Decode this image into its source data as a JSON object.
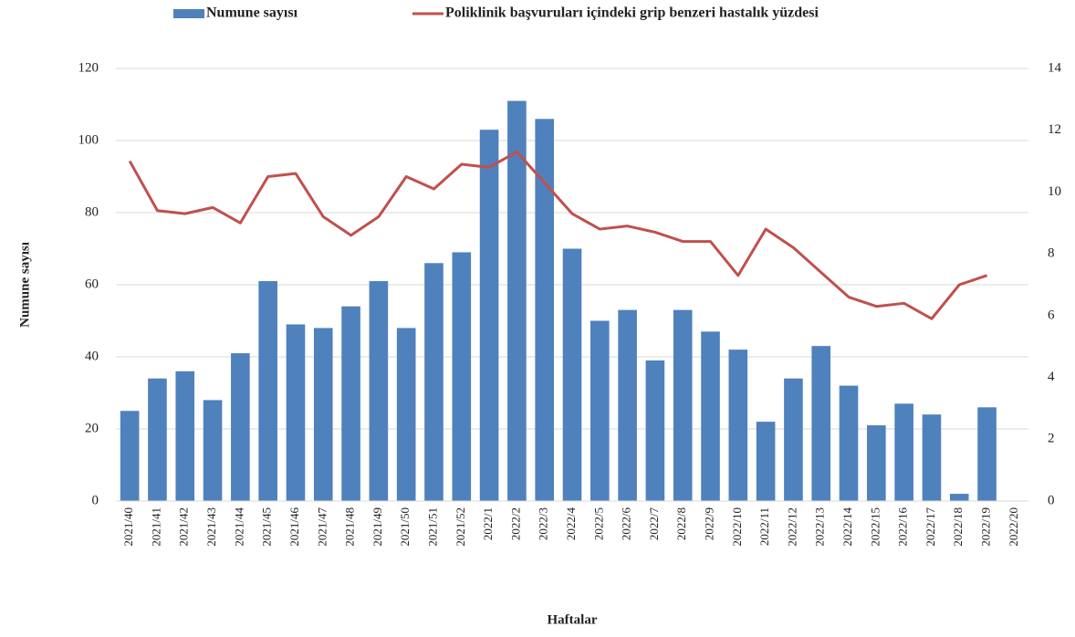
{
  "chart_data": {
    "type": "bar_line",
    "x_label": "Haftalar",
    "y_label": "Numune sayısı",
    "categories": [
      "2021/40",
      "2021/41",
      "2021/42",
      "2021/43",
      "2021/44",
      "2021/45",
      "2021/46",
      "2021/47",
      "2021/48",
      "2021/49",
      "2021/50",
      "2021/51",
      "2021/52",
      "2022/1",
      "2022/2",
      "2022/3",
      "2022/4",
      "2022/5",
      "2022/6",
      "2022/7",
      "2022/8",
      "2022/9",
      "2022/10",
      "2022/11",
      "2022/12",
      "2022/13",
      "2022/14",
      "2022/15",
      "2022/16",
      "2022/17",
      "2022/18",
      "2022/19",
      "2022/20"
    ],
    "series": [
      {
        "name": "Numune sayısı",
        "type": "bar",
        "color": "#4f81bd",
        "values": [
          25,
          34,
          36,
          28,
          41,
          61,
          49,
          48,
          54,
          61,
          48,
          66,
          69,
          103,
          111,
          106,
          70,
          50,
          53,
          39,
          53,
          47,
          42,
          22,
          34,
          43,
          32,
          21,
          27,
          24,
          2,
          26,
          null
        ]
      },
      {
        "name": "Poliklinik başvuruları içindeki grip benzeri hastalık yüzdesi",
        "type": "line",
        "color": "#c0504d",
        "axis": "y2",
        "values": [
          11.0,
          9.4,
          9.3,
          9.5,
          9.0,
          10.5,
          10.6,
          9.2,
          8.6,
          9.2,
          10.5,
          10.1,
          10.9,
          10.8,
          11.3,
          10.3,
          9.3,
          8.8,
          8.9,
          8.7,
          8.4,
          8.4,
          7.3,
          8.8,
          8.2,
          7.4,
          6.6,
          6.3,
          6.4,
          5.9,
          7.0,
          7.3,
          null
        ]
      }
    ],
    "ylim": [
      0,
      120
    ],
    "yticks": [
      0,
      20,
      40,
      60,
      80,
      100,
      120
    ],
    "y2lim": [
      0,
      14
    ],
    "y2ticks": [
      0,
      2,
      4,
      6,
      8,
      10,
      12,
      14
    ],
    "grid": true,
    "legend": "top"
  }
}
